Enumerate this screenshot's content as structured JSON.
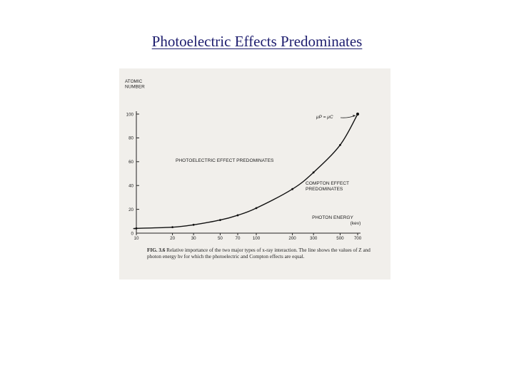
{
  "slide": {
    "title": "Photoelectric Effects Predominates"
  },
  "figure": {
    "caption_label": "FIG. 3.6",
    "caption_text": "Relative importance of the two major types of x-ray interaction. The line shows the values of Z and photon energy hν for which the photoelectric and Compton effects are equal."
  },
  "chart_data": {
    "type": "line",
    "title": "",
    "ylabel": [
      "ATOMIC",
      "NUMBER"
    ],
    "xlabel": [
      "PHOTON ENERGY",
      "(kev)"
    ],
    "x_scale": "log",
    "xlim": [
      10,
      700
    ],
    "ylim": [
      0,
      100
    ],
    "x_ticks": [
      10,
      20,
      30,
      50,
      70,
      100,
      200,
      300,
      500,
      700
    ],
    "y_ticks": [
      0,
      20,
      40,
      60,
      80,
      100
    ],
    "series": [
      {
        "x": [
          10,
          20,
          30,
          50,
          70,
          100,
          200,
          300,
          500,
          700
        ],
        "y": [
          4,
          5,
          7,
          11,
          15,
          21,
          37,
          51,
          74,
          100
        ]
      }
    ],
    "annotations": {
      "upper_region": "PHOTOELECTRIC EFFECT PREDOMINATES",
      "lower_region": [
        "COMPTON EFFECT",
        "PREDOMINATES"
      ],
      "equal_point": "μP = μC"
    },
    "grid": false
  }
}
